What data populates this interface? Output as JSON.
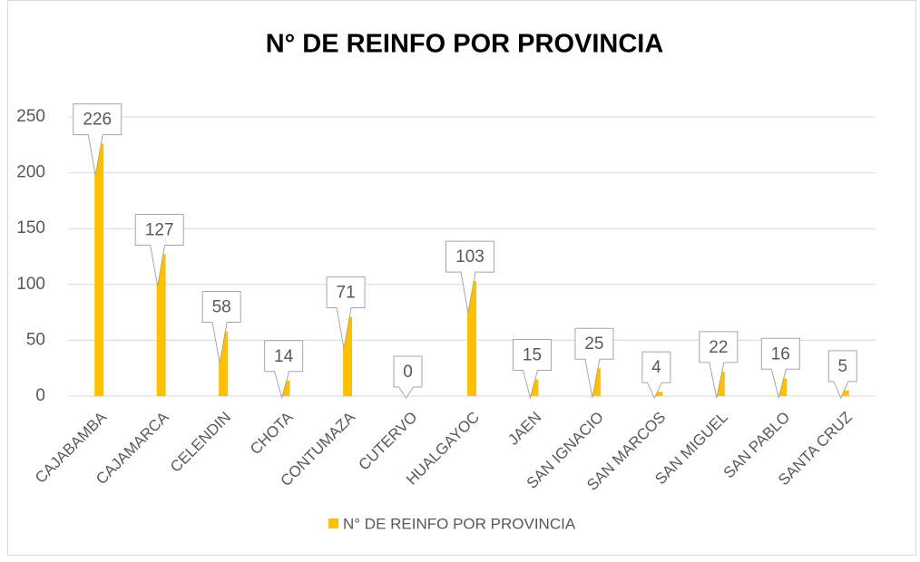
{
  "chart_data": {
    "type": "bar",
    "title": "N° DE REINFO POR PROVINCIA",
    "categories": [
      "CAJABAMBA",
      "CAJAMARCA",
      "CELENDIN",
      "CHOTA",
      "CONTUMAZA",
      "CUTERVO",
      "HUALGAYOC",
      "JAEN",
      "SAN IGNACIO",
      "SAN MARCOS",
      "SAN MIGUEL",
      "SAN PABLO",
      "SANTA CRUZ"
    ],
    "series": [
      {
        "name": "N° DE REINFO POR PROVINCIA",
        "color": "#ffc000",
        "values": [
          226,
          127,
          58,
          14,
          71,
          0,
          103,
          15,
          25,
          4,
          22,
          16,
          5
        ]
      }
    ],
    "ylim": [
      0,
      250
    ],
    "yticks": [
      0,
      50,
      100,
      150,
      200,
      250
    ],
    "grid": true,
    "legend": "bottom"
  }
}
